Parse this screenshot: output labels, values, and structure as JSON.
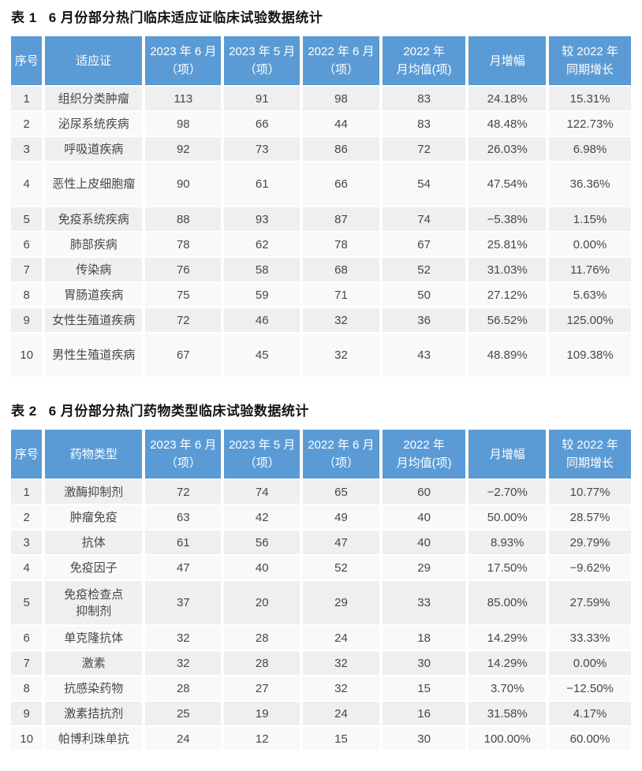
{
  "colors": {
    "header_bg": "#5b9bd5",
    "header_text": "#ffffff",
    "row_odd_bg": "#efefef",
    "row_even_bg": "#f7f9fb",
    "cell_text": "#474747",
    "title_text": "#141414",
    "page_bg": "#ffffff"
  },
  "tables": [
    {
      "label": "表 1",
      "title": "6 月份部分热门临床适应证临床试验数据统计",
      "columns": [
        "序号",
        "适应证",
        "2023 年 6 月\n（项）",
        "2023 年 5 月\n（项）",
        "2022 年 6 月\n（项）",
        "2022 年\n月均值(项)",
        "月增幅",
        "较 2022 年\n同期增长"
      ],
      "tall_rows": [
        3,
        9
      ],
      "rows": [
        [
          "1",
          "组织分类肿瘤",
          "113",
          "91",
          "98",
          "83",
          "24.18%",
          "15.31%"
        ],
        [
          "2",
          "泌尿系统疾病",
          "98",
          "66",
          "44",
          "83",
          "48.48%",
          "122.73%"
        ],
        [
          "3",
          "呼吸道疾病",
          "92",
          "73",
          "86",
          "72",
          "26.03%",
          "6.98%"
        ],
        [
          "4",
          "恶性上皮细胞瘤",
          "90",
          "61",
          "66",
          "54",
          "47.54%",
          "36.36%"
        ],
        [
          "5",
          "免疫系统疾病",
          "88",
          "93",
          "87",
          "74",
          "−5.38%",
          "1.15%"
        ],
        [
          "6",
          "肺部疾病",
          "78",
          "62",
          "78",
          "67",
          "25.81%",
          "0.00%"
        ],
        [
          "7",
          "传染病",
          "76",
          "58",
          "68",
          "52",
          "31.03%",
          "11.76%"
        ],
        [
          "8",
          "胃肠道疾病",
          "75",
          "59",
          "71",
          "50",
          "27.12%",
          "5.63%"
        ],
        [
          "9",
          "女性生殖道疾病",
          "72",
          "46",
          "32",
          "36",
          "56.52%",
          "125.00%"
        ],
        [
          "10",
          "男性生殖道疾病",
          "67",
          "45",
          "32",
          "43",
          "48.89%",
          "109.38%"
        ]
      ]
    },
    {
      "label": "表 2",
      "title": "6 月份部分热门药物类型临床试验数据统计",
      "columns": [
        "序号",
        "药物类型",
        "2023 年 6 月\n（项）",
        "2023 年 5 月\n（项）",
        "2022 年 6 月\n（项）",
        "2022 年\n月均值(项)",
        "月增幅",
        "较 2022 年\n同期增长"
      ],
      "tall_rows": [
        4
      ],
      "rows": [
        [
          "1",
          "激酶抑制剂",
          "72",
          "74",
          "65",
          "60",
          "−2.70%",
          "10.77%"
        ],
        [
          "2",
          "肿瘤免疫",
          "63",
          "42",
          "49",
          "40",
          "50.00%",
          "28.57%"
        ],
        [
          "3",
          "抗体",
          "61",
          "56",
          "47",
          "40",
          "8.93%",
          "29.79%"
        ],
        [
          "4",
          "免疫因子",
          "47",
          "40",
          "52",
          "29",
          "17.50%",
          "−9.62%"
        ],
        [
          "5",
          "免疫检查点\n抑制剂",
          "37",
          "20",
          "29",
          "33",
          "85.00%",
          "27.59%"
        ],
        [
          "6",
          "单克隆抗体",
          "32",
          "28",
          "24",
          "18",
          "14.29%",
          "33.33%"
        ],
        [
          "7",
          "激素",
          "32",
          "28",
          "32",
          "30",
          "14.29%",
          "0.00%"
        ],
        [
          "8",
          "抗感染药物",
          "28",
          "27",
          "32",
          "15",
          "3.70%",
          "−12.50%"
        ],
        [
          "9",
          "激素拮抗剂",
          "25",
          "19",
          "24",
          "16",
          "31.58%",
          "4.17%"
        ],
        [
          "10",
          "帕博利珠单抗",
          "24",
          "12",
          "15",
          "30",
          "100.00%",
          "60.00%"
        ]
      ]
    }
  ]
}
